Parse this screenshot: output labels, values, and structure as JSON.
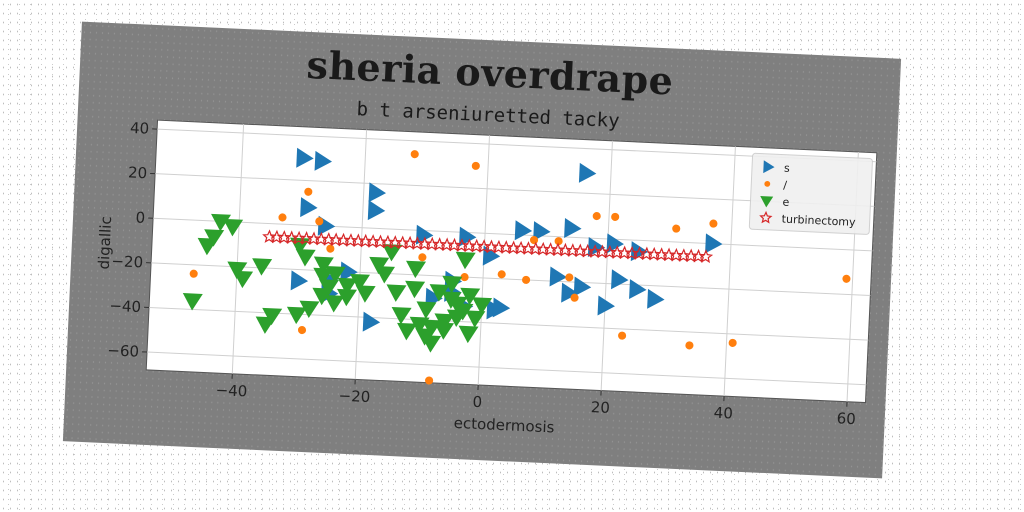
{
  "chart_data": {
    "type": "scatter",
    "title": "sheria overdrape",
    "subtitle": "b t arseniuretted tacky",
    "xlabel": "ectodermosis",
    "ylabel": "digallic",
    "xlim": [
      -54,
      63
    ],
    "ylim": [
      -68,
      44
    ],
    "xticks": [
      -40,
      -20,
      0,
      20,
      40,
      60
    ],
    "yticks": [
      -60,
      -40,
      -20,
      0,
      20,
      40
    ],
    "grid": true,
    "legend_position": "upper right",
    "series": [
      {
        "name": "s",
        "marker": "triangle-right",
        "color": "#1f77b4",
        "points": [
          [
            -30,
            30
          ],
          [
            -27,
            29
          ],
          [
            -18,
            16
          ],
          [
            -18,
            8
          ],
          [
            -29,
            8
          ],
          [
            -26,
            0
          ],
          [
            -10,
            -2
          ],
          [
            -3,
            -2
          ],
          [
            1,
            -10
          ],
          [
            6,
            2
          ],
          [
            9,
            2
          ],
          [
            14,
            4
          ],
          [
            16,
            29
          ],
          [
            16,
            -22
          ],
          [
            18,
            -4
          ],
          [
            21,
            -2
          ],
          [
            25,
            -5
          ],
          [
            22,
            -18
          ],
          [
            25,
            -22
          ],
          [
            28,
            -26
          ],
          [
            37,
            0
          ],
          [
            20,
            -30
          ],
          [
            12,
            -18
          ],
          [
            14,
            -25
          ],
          [
            -5,
            -22
          ],
          [
            -5,
            -27
          ],
          [
            -18,
            -42
          ],
          [
            -30,
            -25
          ],
          [
            -25,
            -24
          ],
          [
            -22,
            -20
          ],
          [
            -25,
            -30
          ],
          [
            2,
            -34
          ],
          [
            -3,
            -33
          ],
          [
            -8,
            -30
          ],
          [
            3,
            -33
          ]
        ]
      },
      {
        "name": "/",
        "marker": "circle",
        "color": "#ff7f0e",
        "points": [
          [
            -12,
            34
          ],
          [
            -2,
            30
          ],
          [
            -29,
            15
          ],
          [
            -33,
            3
          ],
          [
            -27,
            2
          ],
          [
            -25,
            -10
          ],
          [
            -10,
            -12
          ],
          [
            -47,
            -24
          ],
          [
            -29,
            -47
          ],
          [
            -8,
            -67
          ],
          [
            3,
            -18
          ],
          [
            7,
            -20
          ],
          [
            8,
            -2
          ],
          [
            12,
            -2
          ],
          [
            14,
            -18
          ],
          [
            15,
            -27
          ],
          [
            18,
            10
          ],
          [
            21,
            10
          ],
          [
            23,
            -43
          ],
          [
            31,
            6
          ],
          [
            34,
            -46
          ],
          [
            37,
            9
          ],
          [
            41,
            -44
          ],
          [
            59,
            -13
          ],
          [
            -3,
            -20
          ]
        ]
      },
      {
        "name": "e",
        "marker": "triangle-down",
        "color": "#2ca02c",
        "points": [
          [
            -43,
            0
          ],
          [
            -41,
            -2
          ],
          [
            -44,
            -7
          ],
          [
            -45,
            -11
          ],
          [
            -40,
            -21
          ],
          [
            -39,
            -25
          ],
          [
            -36,
            -19
          ],
          [
            -47,
            -36
          ],
          [
            -34,
            -41
          ],
          [
            -35,
            -45
          ],
          [
            -30,
            -9
          ],
          [
            -29,
            -14
          ],
          [
            -30,
            -40
          ],
          [
            -28,
            -37
          ],
          [
            -26,
            -17
          ],
          [
            -26,
            -22
          ],
          [
            -24,
            -21
          ],
          [
            -25,
            -27
          ],
          [
            -26,
            -31
          ],
          [
            -24,
            -34
          ],
          [
            -22,
            -26
          ],
          [
            -22,
            -31
          ],
          [
            -19,
            -29
          ],
          [
            -17,
            -16
          ],
          [
            -15,
            -10
          ],
          [
            -14,
            -28
          ],
          [
            -13,
            -38
          ],
          [
            -16,
            -20
          ],
          [
            -11,
            -26
          ],
          [
            -10,
            -42
          ],
          [
            -9,
            -47
          ],
          [
            -8,
            -43
          ],
          [
            -7,
            -27
          ],
          [
            -5,
            -30
          ],
          [
            -4,
            -38
          ],
          [
            -5,
            -23
          ],
          [
            -3,
            -35
          ],
          [
            -2,
            -45
          ],
          [
            -1,
            -38
          ],
          [
            0,
            -32
          ],
          [
            -6,
            -44
          ],
          [
            -3,
            -12
          ],
          [
            -2,
            -28
          ],
          [
            -9,
            -35
          ],
          [
            -11,
            -17
          ],
          [
            -4,
            -32
          ],
          [
            -6,
            -40
          ],
          [
            -12,
            -45
          ],
          [
            -8,
            -50
          ],
          [
            -20,
            -24
          ]
        ]
      },
      {
        "name": "turbinectomy",
        "marker": "star",
        "color": "#d62728",
        "line_y": -6,
        "x_from": -35,
        "x_to": 36,
        "count": 60
      }
    ]
  }
}
